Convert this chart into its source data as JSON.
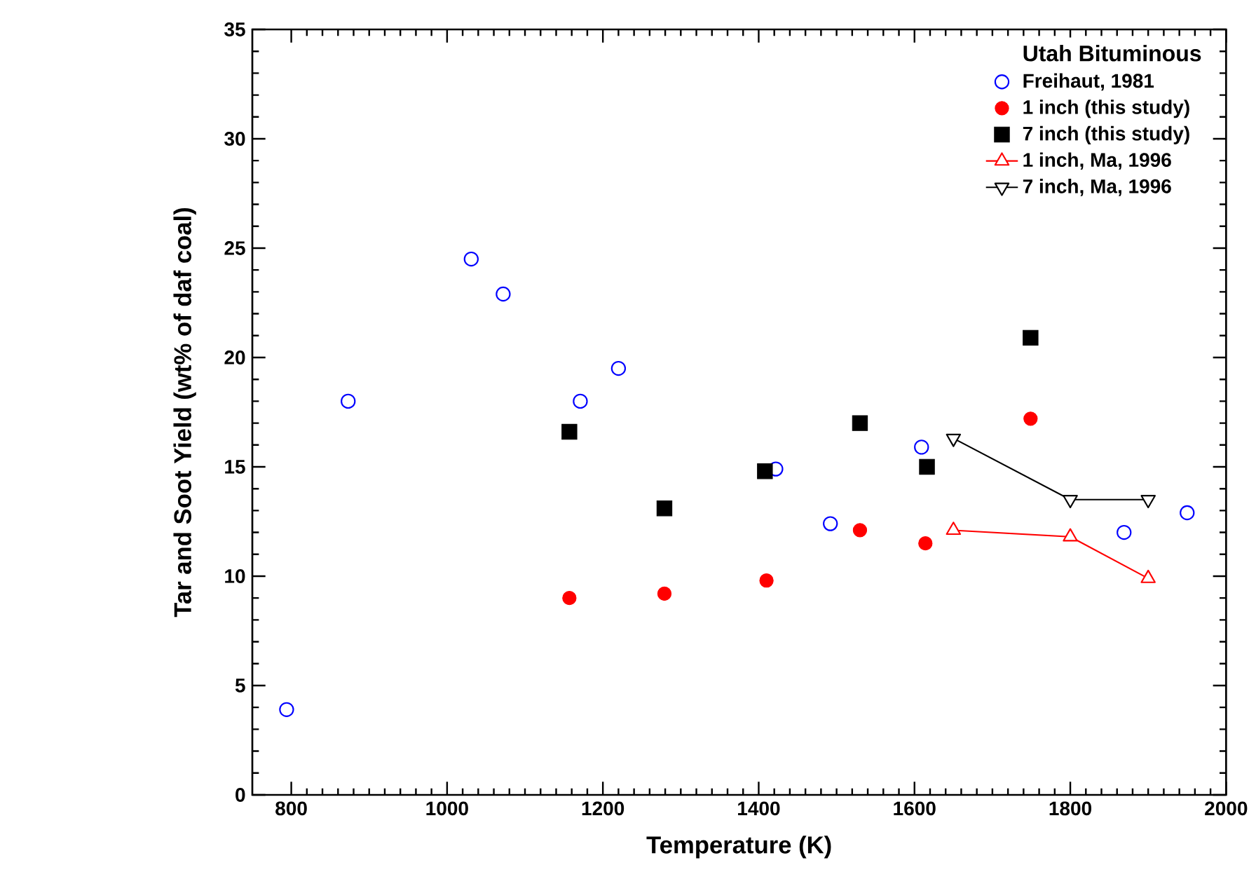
{
  "chart_data": {
    "type": "scatter",
    "xlabel": "Temperature (K)",
    "ylabel": "Tar and Soot Yield (wt% of daf coal)",
    "legend_title": "Utah Bituminous",
    "xlim": [
      750,
      2000
    ],
    "xticks": [
      800,
      1000,
      1200,
      1400,
      1600,
      1800,
      2000
    ],
    "ylim": [
      0,
      35
    ],
    "yticks": [
      0,
      5,
      10,
      15,
      20,
      25,
      30,
      35
    ],
    "grid": false,
    "legend": "top right",
    "series": [
      {
        "name": "Freihaut, 1981",
        "color": "#0000ff",
        "marker": "circle-open",
        "x": [
          794,
          873,
          1031,
          1072,
          1171,
          1220,
          1422,
          1492,
          1609,
          1869,
          1950
        ],
        "values": [
          3.9,
          18.0,
          24.5,
          22.9,
          18.0,
          19.5,
          14.9,
          12.4,
          15.9,
          12.0,
          12.9
        ]
      },
      {
        "name": "1 inch (this study)",
        "color": "#ff0000",
        "marker": "circle",
        "x": [
          1157,
          1279,
          1410,
          1530,
          1614,
          1749
        ],
        "values": [
          9.0,
          9.2,
          9.8,
          12.1,
          11.5,
          17.2
        ]
      },
      {
        "name": "7 inch (this study)",
        "color": "#000000",
        "marker": "square",
        "x": [
          1157,
          1279,
          1408,
          1530,
          1616,
          1749
        ],
        "values": [
          16.6,
          13.1,
          14.8,
          17.0,
          15.0,
          20.9
        ]
      },
      {
        "name": "1 inch, Ma, 1996",
        "type": "line",
        "color": "#ff0000",
        "marker": "triangle-open",
        "line_style": "solid",
        "x": [
          1650,
          1800,
          1900
        ],
        "values": [
          12.1,
          11.8,
          9.9
        ]
      },
      {
        "name": "7 inch, Ma, 1996",
        "type": "line",
        "color": "#000000",
        "marker": "triangle-down-open",
        "line_style": "solid",
        "x": [
          1650,
          1800,
          1900
        ],
        "values": [
          16.3,
          13.5,
          13.5
        ]
      }
    ]
  }
}
